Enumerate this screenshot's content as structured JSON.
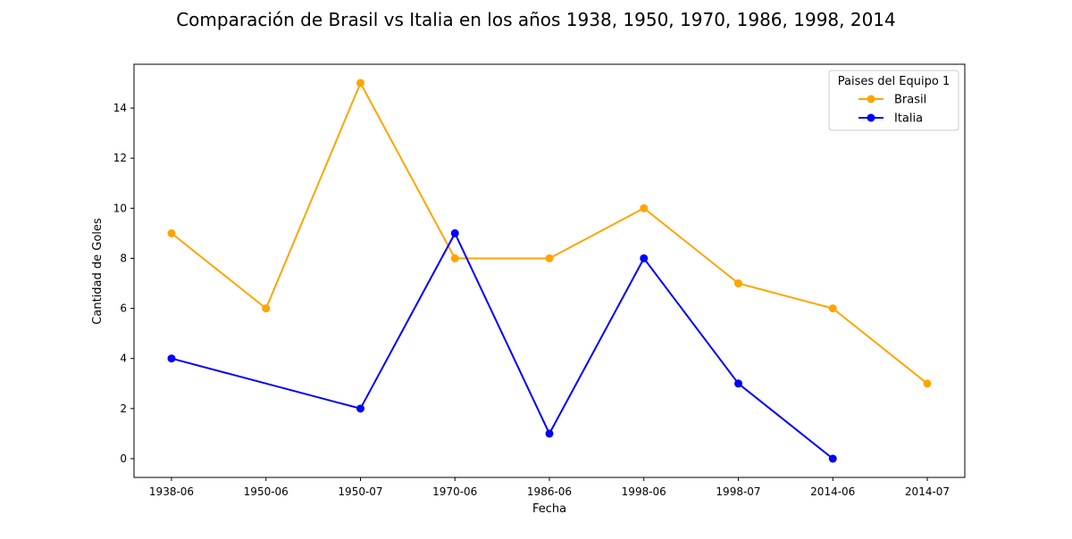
{
  "chart_data": {
    "type": "line",
    "title": "Comparación de Brasil vs Italia en los años 1938, 1950, 1970, 1986, 1998, 2014",
    "xlabel": "Fecha",
    "ylabel": "Cantidad de Goles",
    "categories": [
      "1938-06",
      "1950-06",
      "1950-07",
      "1970-06",
      "1986-06",
      "1998-06",
      "1998-07",
      "2014-06",
      "2014-07"
    ],
    "yticks": [
      0,
      2,
      4,
      6,
      8,
      10,
      12,
      14
    ],
    "ylim": [
      -0.75,
      15.75
    ],
    "grid": false,
    "legend": {
      "title": "Paises del Equipo 1",
      "placement": "top-right"
    },
    "series": [
      {
        "name": "Brasil",
        "color": "#FFA500",
        "values": [
          9,
          6,
          15,
          8,
          8,
          10,
          7,
          6,
          3
        ]
      },
      {
        "name": "Italia",
        "color": "#0000FF",
        "values": [
          4,
          null,
          2,
          9,
          1,
          8,
          3,
          0,
          null
        ]
      }
    ]
  }
}
